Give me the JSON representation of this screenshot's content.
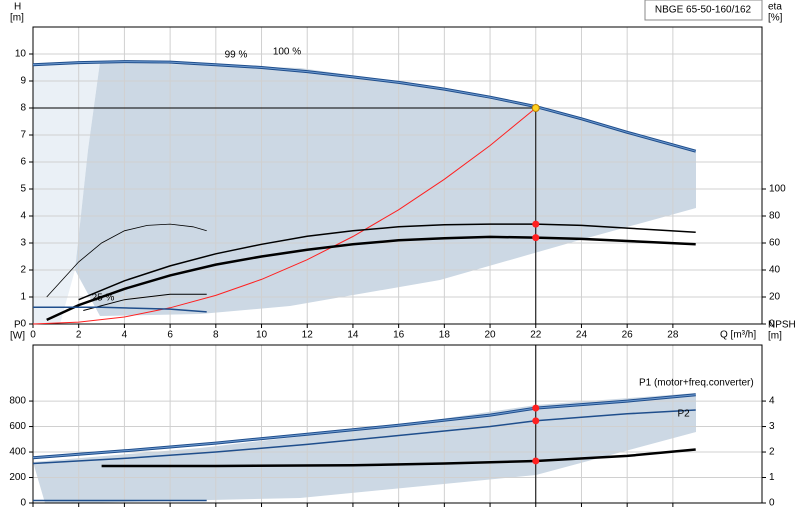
{
  "chart_data": [
    {
      "type": "line",
      "title": "NBGE 65-50-160/162",
      "xlabel": "Q [m³/h]",
      "ylabel": "H",
      "yunit": "[m]",
      "y2label": "eta",
      "y2unit": "[%]",
      "xlim": [
        0,
        31.9
      ],
      "xticks": [
        0,
        2,
        4,
        6,
        8,
        10,
        12,
        14,
        16,
        18,
        20,
        22,
        24,
        26,
        28
      ],
      "ylim": [
        0,
        11
      ],
      "yticks": [
        0,
        1,
        2,
        3,
        4,
        5,
        6,
        7,
        8,
        9,
        10
      ],
      "y2lim": [
        0,
        220
      ],
      "y2ticks": [
        0,
        20,
        40,
        60,
        80,
        100
      ],
      "grid": true,
      "duty_point": {
        "x": 22,
        "y": 8,
        "color": "#ffd21f"
      },
      "annotations": [
        "99 %",
        "100 %",
        "25 %"
      ],
      "series": [
        {
          "color": "#1f4e8c",
          "line_width": 3,
          "x": [
            0,
            2,
            4,
            6,
            8,
            10,
            12,
            14,
            16,
            18,
            20,
            22,
            24,
            26,
            29
          ],
          "values": [
            9.6,
            9.68,
            9.72,
            9.7,
            9.6,
            9.5,
            9.35,
            9.15,
            8.95,
            8.7,
            8.4,
            8.05,
            7.6,
            7.1,
            6.4
          ]
        },
        {
          "color": "#ff2020",
          "line_width": 1,
          "x": [
            0,
            2,
            4,
            6,
            8,
            10,
            12,
            14,
            16,
            18,
            20,
            22
          ],
          "values": [
            0,
            0.07,
            0.26,
            0.6,
            1.06,
            1.65,
            2.38,
            3.24,
            4.23,
            5.36,
            6.61,
            8
          ]
        },
        {
          "color": "#000000",
          "line_width": 1.5,
          "axis": "y2",
          "duty_marker": true,
          "x": [
            2,
            4,
            6,
            8,
            10,
            12,
            14,
            16,
            18,
            20,
            22,
            24,
            26,
            29
          ],
          "values": [
            18,
            32,
            43,
            52,
            59,
            65,
            69,
            72,
            73.5,
            74,
            74,
            73,
            71,
            68
          ]
        },
        {
          "color": "#000000",
          "line_width": 2.5,
          "axis": "y2",
          "duty_marker": true,
          "x": [
            0.6,
            2,
            4,
            6,
            8,
            10,
            12,
            14,
            16,
            18,
            20,
            22,
            24,
            26,
            29
          ],
          "values": [
            3,
            14,
            26,
            36,
            44,
            50,
            55,
            59,
            62,
            63.5,
            64.5,
            64,
            63,
            61.5,
            59
          ]
        },
        {
          "color": "#000000",
          "line_width": 0.8,
          "x": [
            0.6,
            2,
            3,
            4,
            5,
            6,
            7,
            7.6
          ],
          "values": [
            1,
            2.3,
            3,
            3.45,
            3.65,
            3.7,
            3.6,
            3.45
          ]
        },
        {
          "color": "#000000",
          "line_width": 1,
          "axis": "y2",
          "x": [
            2.2,
            4,
            6,
            7.6
          ],
          "values": [
            10,
            18,
            22,
            22
          ]
        },
        {
          "color": "#1f4e8c",
          "line_width": 1.5,
          "x": [
            0,
            3,
            6,
            7.6
          ],
          "values": [
            0.62,
            0.62,
            0.55,
            0.45
          ]
        }
      ]
    },
    {
      "type": "line",
      "ylabel": "P",
      "yunit": "[W]",
      "y2label": "NPSH",
      "y2unit": "[m]",
      "xlim": [
        0,
        31.9
      ],
      "xticks": [
        0,
        2,
        4,
        6,
        8,
        10,
        12,
        14,
        16,
        18,
        20,
        22,
        24,
        26,
        28
      ],
      "ylim": [
        0,
        1240
      ],
      "yticks": [
        0,
        200,
        400,
        600,
        800
      ],
      "y2lim": [
        0,
        6.2
      ],
      "y2ticks": [
        0,
        1,
        2,
        3,
        4
      ],
      "grid": true,
      "duty_x": 22,
      "series": [
        {
          "name": "P1 (motor+freq.converter)",
          "color": "#1f4e8c",
          "line_width": 3,
          "duty_marker": true,
          "x": [
            0,
            4,
            8,
            12,
            16,
            20,
            22,
            26,
            29
          ],
          "values": [
            355,
            410,
            470,
            540,
            610,
            690,
            745,
            800,
            850
          ]
        },
        {
          "name": "P2",
          "color": "#1f4e8c",
          "line_width": 1.5,
          "duty_marker": true,
          "x": [
            0,
            4,
            8,
            12,
            16,
            20,
            22,
            26,
            29
          ],
          "values": [
            310,
            350,
            400,
            460,
            530,
            600,
            645,
            700,
            730
          ]
        },
        {
          "color": "#000000",
          "line_width": 2.5,
          "axis": "y2",
          "duty_marker": true,
          "x": [
            3,
            8,
            14,
            18,
            22,
            26,
            29
          ],
          "values": [
            1.45,
            1.45,
            1.48,
            1.55,
            1.65,
            1.85,
            2.1
          ]
        },
        {
          "color": "#1f4e8c",
          "line_width": 1.5,
          "x": [
            0,
            7.6
          ],
          "values": [
            20,
            20
          ]
        }
      ]
    }
  ]
}
